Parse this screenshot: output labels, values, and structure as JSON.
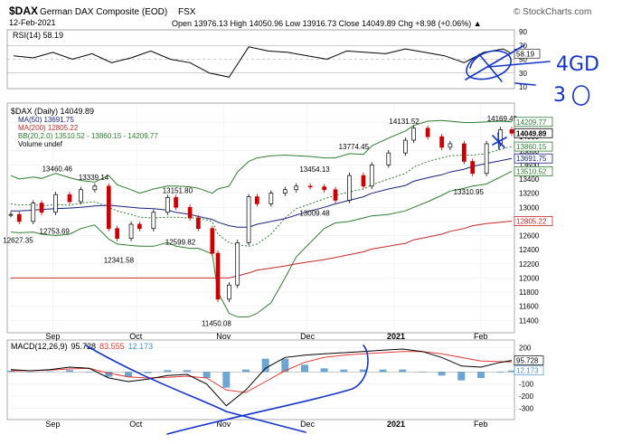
{
  "header": {
    "symbol": "$DAX",
    "name": "German DAX Composite (EOD)",
    "exchange": "FSX",
    "source": "© StockCharts.com",
    "date": "12-Feb-2021",
    "ohlc": "Open 13976.13  High 14050.96  Low 13916.73  Close 14049.89  Chg +8.98 (+0.06%) ▲"
  },
  "colors": {
    "price": "#000000",
    "ma50": "#1a237e",
    "ma200": "#c62828",
    "bb": "#2e7d32",
    "macd": "#000000",
    "signal": "#e53935",
    "hist": "#4a90c8",
    "annotation": "#1434cc",
    "up": "#000000",
    "down": "#cc0000"
  },
  "legend": {
    "rsi": "RSI(14) 58.19",
    "price": "$DAX (Daily) 14049.89",
    "ma50": "MA(50) 13691.75",
    "ma200": "MA(200) 12805.22",
    "bb": "BB(20,2.0) 13510.52 - 13860.15 - 14209.77",
    "volume": "Volume undef",
    "macd_label": "MACD(12,26,9)",
    "macd_v": "95.728",
    "signal_v": "83.555",
    "hist_v": "12.173"
  },
  "axis_tags": {
    "rsi": "58.19",
    "price": [
      "14209.77",
      "14049.89",
      "13860.15",
      "13691.75",
      "13510.52",
      "12805.22"
    ],
    "macd": [
      "95.728",
      "12.173"
    ]
  },
  "handwriting": [
    "4GD",
    "3"
  ],
  "chart_data": [
    {
      "type": "line",
      "name": "rsi",
      "ylim": [
        10,
        90
      ],
      "yticks": [
        10,
        30,
        50,
        70,
        90
      ],
      "lines": [
        30,
        50,
        70
      ],
      "x": [
        "2020-08-18",
        "2020-08-25",
        "2020-09-01",
        "2020-09-08",
        "2020-09-15",
        "2020-09-22",
        "2020-09-29",
        "2020-10-06",
        "2020-10-13",
        "2020-10-20",
        "2020-10-27",
        "2020-11-03",
        "2020-11-10",
        "2020-11-17",
        "2020-11-24",
        "2020-12-01",
        "2020-12-08",
        "2020-12-15",
        "2020-12-22",
        "2020-12-29",
        "2021-01-05",
        "2021-01-12",
        "2021-01-19",
        "2021-01-26",
        "2021-02-02",
        "2021-02-09",
        "2021-02-12"
      ],
      "values": [
        55,
        52,
        60,
        50,
        58,
        45,
        52,
        62,
        50,
        45,
        30,
        24,
        68,
        62,
        60,
        55,
        50,
        62,
        60,
        58,
        65,
        60,
        55,
        45,
        60,
        65,
        58.19
      ]
    },
    {
      "type": "line",
      "name": "price",
      "ylim": [
        11250,
        14450
      ],
      "yticks": [
        11400,
        11600,
        11800,
        12000,
        12200,
        12400,
        12600,
        12800,
        13000,
        13200,
        13400,
        13600,
        13800,
        14000,
        14200
      ],
      "months": [
        {
          "label": "Sep",
          "date": "2020-09-01"
        },
        {
          "label": "Oct",
          "date": "2020-10-01"
        },
        {
          "label": "Nov",
          "date": "2020-11-01"
        },
        {
          "label": "Dec",
          "date": "2020-12-01"
        },
        {
          "label": "2021",
          "date": "2021-01-01"
        },
        {
          "label": "Feb",
          "date": "2021-02-01"
        }
      ],
      "x": [
        "2020-08-17",
        "2020-08-20",
        "2020-08-25",
        "2020-08-28",
        "2020-09-02",
        "2020-09-07",
        "2020-09-11",
        "2020-09-16",
        "2020-09-21",
        "2020-09-24",
        "2020-09-29",
        "2020-10-02",
        "2020-10-07",
        "2020-10-12",
        "2020-10-15",
        "2020-10-20",
        "2020-10-23",
        "2020-10-28",
        "2020-10-30",
        "2020-11-03",
        "2020-11-06",
        "2020-11-10",
        "2020-11-13",
        "2020-11-18",
        "2020-11-23",
        "2020-11-27",
        "2020-12-02",
        "2020-12-07",
        "2020-12-11",
        "2020-12-16",
        "2020-12-21",
        "2020-12-24",
        "2020-12-30",
        "2021-01-05",
        "2021-01-08",
        "2021-01-13",
        "2021-01-18",
        "2021-01-21",
        "2021-01-26",
        "2021-01-29",
        "2021-02-03",
        "2021-02-08",
        "2021-02-12"
      ],
      "close": [
        12900,
        12800,
        13060,
        12930,
        13180,
        13080,
        13250,
        13300,
        12700,
        12560,
        12760,
        12700,
        12930,
        13139,
        13000,
        12850,
        12700,
        12350,
        11700,
        11900,
        12500,
        13150,
        13050,
        13200,
        13250,
        13300,
        13290,
        13250,
        13100,
        13450,
        13300,
        13600,
        13770,
        13950,
        14120,
        14000,
        13850,
        13900,
        13650,
        13480,
        13900,
        14100,
        14049.89
      ],
      "ma50": [
        12950,
        12950,
        12960,
        12970,
        12980,
        12990,
        13000,
        13020,
        13030,
        13020,
        13000,
        12990,
        12980,
        12960,
        12930,
        12900,
        12870,
        12830,
        12790,
        12740,
        12720,
        12720,
        12760,
        12800,
        12840,
        12890,
        12950,
        13000,
        13050,
        13100,
        13150,
        13200,
        13260,
        13310,
        13370,
        13420,
        13460,
        13500,
        13540,
        13580,
        13620,
        13660,
        13691.75
      ],
      "ma200": [
        12000,
        12000,
        12000,
        12000,
        12000,
        12000,
        12000,
        12000,
        12000,
        12000,
        12000,
        12000,
        12000,
        12000,
        12000,
        12000,
        12000,
        12000,
        12000,
        12000,
        12030,
        12070,
        12110,
        12140,
        12170,
        12200,
        12230,
        12260,
        12290,
        12330,
        12370,
        12410,
        12450,
        12490,
        12540,
        12580,
        12620,
        12660,
        12700,
        12740,
        12770,
        12790,
        12805.22
      ],
      "bb_upper": [
        13450,
        13400,
        13430,
        13410,
        13480,
        13420,
        13380,
        13360,
        13450,
        13320,
        13250,
        13200,
        13260,
        13300,
        13300,
        13290,
        13270,
        13200,
        13260,
        13300,
        13500,
        13650,
        13700,
        13730,
        13740,
        13730,
        13720,
        13700,
        13700,
        13760,
        13750,
        13870,
        13980,
        14080,
        14160,
        14220,
        14230,
        14220,
        14200,
        14200,
        14210,
        14220,
        14209.77
      ],
      "bb_mid": [
        13050,
        13030,
        13040,
        13020,
        13040,
        13030,
        13060,
        13080,
        13000,
        12950,
        12900,
        12860,
        12850,
        12860,
        12860,
        12850,
        12850,
        12800,
        12620,
        12500,
        12470,
        12450,
        12480,
        12620,
        12850,
        12980,
        13050,
        13120,
        13170,
        13220,
        13260,
        13320,
        13400,
        13480,
        13570,
        13650,
        13700,
        13730,
        13740,
        13740,
        13760,
        13820,
        13860.15
      ],
      "bb_lower": [
        12650,
        12640,
        12650,
        12620,
        12600,
        12620,
        12700,
        12750,
        12550,
        12480,
        12460,
        12450,
        12450,
        12500,
        12450,
        12420,
        12420,
        12340,
        11800,
        11500,
        11450,
        11450,
        11500,
        11650,
        12000,
        12300,
        12500,
        12700,
        12780,
        12800,
        12850,
        12880,
        12900,
        12950,
        13000,
        13080,
        13170,
        13230,
        13270,
        13300,
        13330,
        13430,
        13510.52
      ],
      "labels": [
        {
          "text": "13460.46",
          "date": "2020-09-03",
          "value": 13460.46,
          "pos": "above"
        },
        {
          "text": "13339.14",
          "date": "2020-09-16",
          "value": 13339.14,
          "pos": "above"
        },
        {
          "text": "12627.35",
          "date": "2020-08-20",
          "value": 12627.35,
          "pos": "below"
        },
        {
          "text": "12753.69",
          "date": "2020-09-02",
          "value": 12753.69,
          "pos": "below"
        },
        {
          "text": "12341.58",
          "date": "2020-09-25",
          "value": 12341.58,
          "pos": "below"
        },
        {
          "text": "13151.80",
          "date": "2020-10-16",
          "value": 13151.8,
          "pos": "above"
        },
        {
          "text": "12599.82",
          "date": "2020-10-17",
          "value": 12599.82,
          "pos": "below"
        },
        {
          "text": "11450.08",
          "date": "2020-10-30",
          "value": 11450.08,
          "pos": "below"
        },
        {
          "text": "13454.13",
          "date": "2020-12-04",
          "value": 13454.13,
          "pos": "above"
        },
        {
          "text": "13009.48",
          "date": "2020-12-04",
          "value": 13009.48,
          "pos": "below"
        },
        {
          "text": "13774.45",
          "date": "2020-12-18",
          "value": 13774.45,
          "pos": "above"
        },
        {
          "text": "14131.52",
          "date": "2021-01-05",
          "value": 14131.52,
          "pos": "above"
        },
        {
          "text": "14169.49",
          "date": "2021-02-09",
          "value": 14169.49,
          "pos": "above"
        },
        {
          "text": "13310.95",
          "date": "2021-01-28",
          "value": 13310.95,
          "pos": "below"
        }
      ]
    },
    {
      "type": "line",
      "name": "macd",
      "ylim": [
        -380,
        250
      ],
      "yticks": [
        -300,
        -200,
        -100,
        0,
        100,
        200
      ],
      "months": [
        {
          "label": "Sep",
          "date": "2020-09-01"
        },
        {
          "label": "Oct",
          "date": "2020-10-01"
        },
        {
          "label": "Nov",
          "date": "2020-11-01"
        },
        {
          "label": "Dec",
          "date": "2020-12-01"
        },
        {
          "label": "2021",
          "date": "2021-01-01"
        },
        {
          "label": "Feb",
          "date": "2021-02-01"
        }
      ],
      "x": [
        "2020-08-17",
        "2020-08-24",
        "2020-08-31",
        "2020-09-07",
        "2020-09-14",
        "2020-09-21",
        "2020-09-28",
        "2020-10-05",
        "2020-10-12",
        "2020-10-19",
        "2020-10-26",
        "2020-11-02",
        "2020-11-09",
        "2020-11-16",
        "2020-11-23",
        "2020-11-30",
        "2020-12-07",
        "2020-12-14",
        "2020-12-21",
        "2020-12-28",
        "2021-01-04",
        "2021-01-11",
        "2021-01-18",
        "2021-01-25",
        "2021-02-01",
        "2021-02-08",
        "2021-02-12"
      ],
      "macd": [
        20,
        10,
        20,
        40,
        30,
        -50,
        -80,
        -60,
        -30,
        -20,
        -100,
        -280,
        -150,
        30,
        120,
        140,
        150,
        160,
        170,
        180,
        190,
        170,
        120,
        50,
        40,
        80,
        95.728
      ],
      "signal": [
        10,
        10,
        15,
        25,
        30,
        -10,
        -40,
        -50,
        -45,
        -35,
        -50,
        -150,
        -170,
        -80,
        10,
        80,
        120,
        140,
        150,
        160,
        170,
        170,
        150,
        120,
        90,
        85,
        83.555
      ],
      "hist": [
        10,
        0,
        5,
        15,
        0,
        -40,
        -40,
        -10,
        15,
        15,
        -50,
        -130,
        20,
        110,
        110,
        60,
        30,
        20,
        20,
        20,
        20,
        0,
        -30,
        -70,
        -50,
        -5,
        12.173
      ]
    }
  ]
}
